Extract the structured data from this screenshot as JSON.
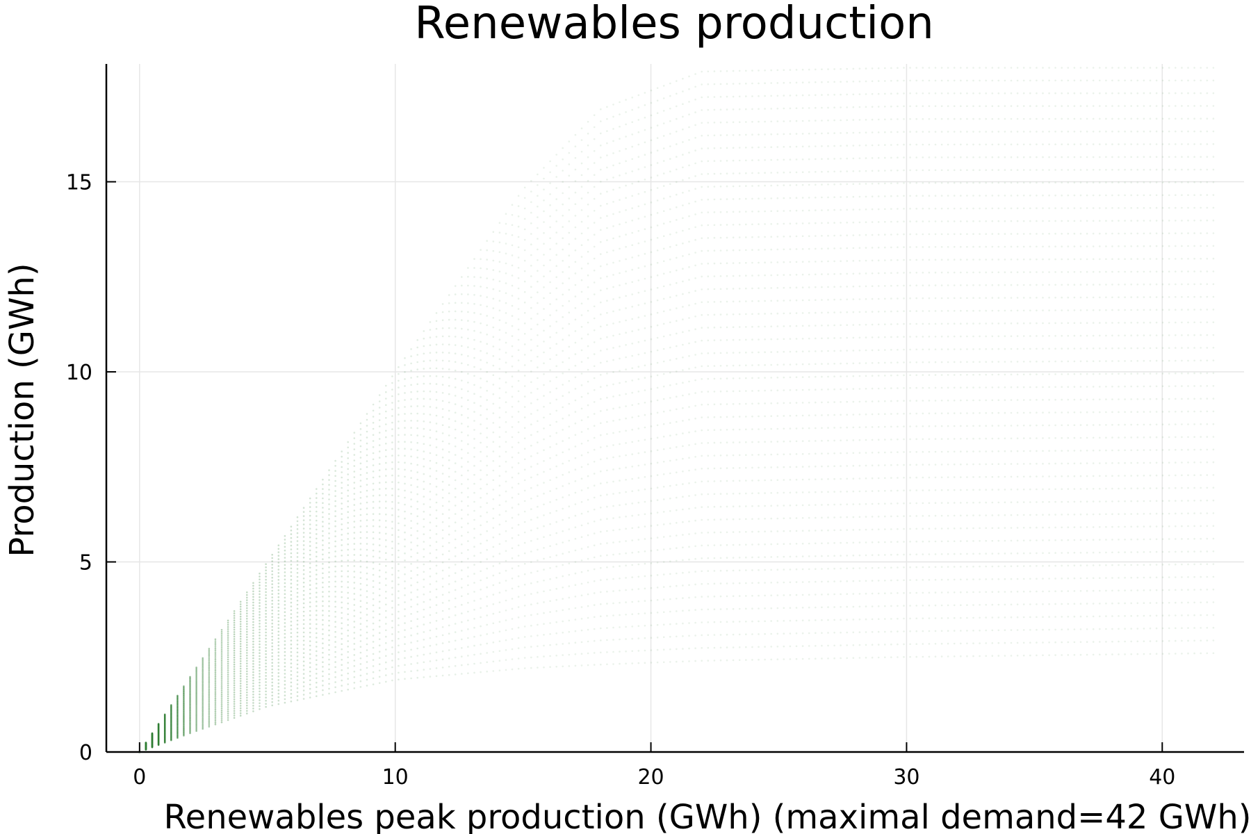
{
  "chart_data": {
    "type": "scatter",
    "title": "Renewables production",
    "xlabel": "Renewables peak production (GWh) (maximal demand=42 GWh)",
    "ylabel": "Production (GWh)",
    "xlim": [
      -1.3,
      43.2
    ],
    "ylim": [
      0,
      18.1
    ],
    "x_ticks": [
      0,
      10,
      20,
      30,
      40
    ],
    "x_tick_labels": [
      "0",
      "10",
      "20",
      "30",
      "40"
    ],
    "y_ticks": [
      0,
      5,
      10,
      15
    ],
    "y_tick_labels": [
      "0",
      "5",
      "10",
      "15"
    ],
    "grid": true,
    "legend": "none",
    "series_color": "#2e7d32",
    "peak_production_range": [
      0,
      42
    ],
    "envelope": [
      {
        "peak": 0,
        "min": 0,
        "max": 0
      },
      {
        "peak": 2,
        "min": 0.5,
        "max": 2
      },
      {
        "peak": 5,
        "min": 1.2,
        "max": 5
      },
      {
        "peak": 10,
        "min": 1.9,
        "max": 10
      },
      {
        "peak": 15,
        "min": 2.2,
        "max": 14.8
      },
      {
        "peak": 18,
        "min": 2.3,
        "max": 16.9
      },
      {
        "peak": 22,
        "min": 2.4,
        "max": 17.9
      },
      {
        "peak": 30,
        "min": 2.5,
        "max": 18
      },
      {
        "peak": 42,
        "min": 2.6,
        "max": 18
      }
    ]
  }
}
